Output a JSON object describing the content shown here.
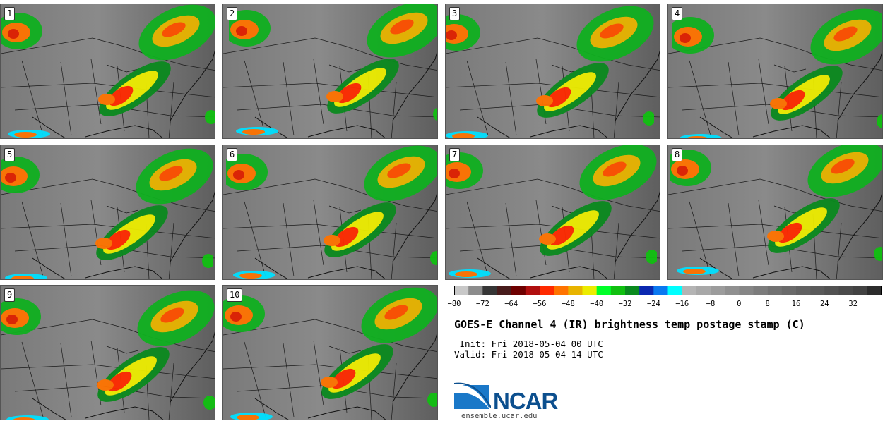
{
  "chart_data": {
    "type": "heatmap",
    "title": "GOES-E Channel 4 (IR) brightness temp postage stamp (C)",
    "init": " Init: Fri 2018-05-04 00 UTC",
    "valid": "Valid: Fri 2018-05-04 14 UTC",
    "panels": [
      "1",
      "2",
      "3",
      "4",
      "5",
      "6",
      "7",
      "8",
      "9",
      "10"
    ],
    "colorbar": {
      "bins": [
        -80,
        -76,
        -72,
        -68,
        -64,
        -60,
        -56,
        -52,
        -48,
        -44,
        -40,
        -36,
        -32,
        -28,
        -24,
        -20,
        -16,
        -12,
        -8,
        -4,
        0,
        4,
        8,
        12,
        16,
        20,
        24,
        28,
        32,
        36,
        40
      ],
      "colors": [
        "#c8c8c8",
        "#8c8c8c",
        "#363636",
        "#481c1c",
        "#6e0000",
        "#b00f0f",
        "#ff2a00",
        "#ff7300",
        "#e8b400",
        "#ecec00",
        "#00ff28",
        "#10c010",
        "#0a8a1e",
        "#0a28b0",
        "#0a78f0",
        "#00ffff",
        "#b4b4b4",
        "#a8a8a8",
        "#9c9c9c",
        "#909090",
        "#868686",
        "#7c7c7c",
        "#727272",
        "#6a6a6a",
        "#626262",
        "#5a5a5a",
        "#525252",
        "#4a4a4a",
        "#424242",
        "#2c2c2c"
      ],
      "tick_labels": [
        "−80",
        "−72",
        "−64",
        "−56",
        "−48",
        "−40",
        "−32",
        "−24",
        "−16",
        "−8",
        "0",
        "8",
        "16",
        "24",
        "32"
      ],
      "tick_values": [
        -80,
        -72,
        -64,
        -56,
        -48,
        -40,
        -32,
        -24,
        -16,
        -8,
        0,
        8,
        16,
        24,
        32
      ]
    }
  },
  "logo": {
    "text": "NCAR",
    "website": "ensemble.ucar.edu"
  }
}
